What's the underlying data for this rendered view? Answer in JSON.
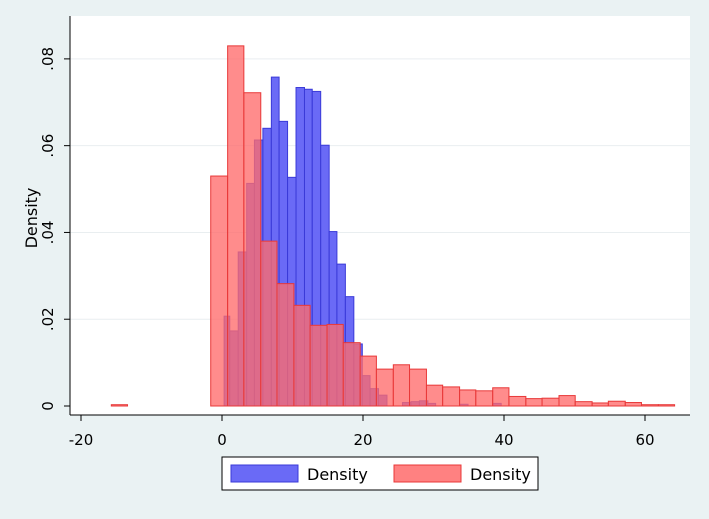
{
  "chart_data": {
    "type": "bar",
    "title": "",
    "xlabel": "",
    "ylabel": "Density",
    "xlim": [
      -22,
      67
    ],
    "ylim": [
      0,
      0.0885
    ],
    "x_ticks": [
      -20,
      0,
      20,
      40,
      60
    ],
    "x_tick_labels": [
      "-20",
      "0",
      "20",
      "40",
      "60"
    ],
    "y_ticks": [
      0,
      0.02,
      0.04,
      0.06,
      0.08
    ],
    "y_tick_labels": [
      "0",
      ".02",
      ".04",
      ".06",
      ".08"
    ],
    "grid": true,
    "legend_position": "bottom",
    "series": [
      {
        "name": "Density",
        "color": "#6262f5",
        "edge_color": "#3a3ad8",
        "bins": [
          {
            "x0": 0.3,
            "x1": 1.1,
            "value": 0.0207
          },
          {
            "x0": 1.1,
            "x1": 2.3,
            "value": 0.0173
          },
          {
            "x0": 2.3,
            "x1": 3.5,
            "value": 0.0355
          },
          {
            "x0": 3.5,
            "x1": 4.6,
            "value": 0.0513
          },
          {
            "x0": 4.6,
            "x1": 5.8,
            "value": 0.0613
          },
          {
            "x0": 5.8,
            "x1": 7.0,
            "value": 0.064
          },
          {
            "x0": 7.0,
            "x1": 8.1,
            "value": 0.0758
          },
          {
            "x0": 8.1,
            "x1": 9.3,
            "value": 0.0656
          },
          {
            "x0": 9.3,
            "x1": 10.5,
            "value": 0.0527
          },
          {
            "x0": 10.5,
            "x1": 11.7,
            "value": 0.0734
          },
          {
            "x0": 11.7,
            "x1": 12.8,
            "value": 0.073
          },
          {
            "x0": 12.8,
            "x1": 14.0,
            "value": 0.0725
          },
          {
            "x0": 14.0,
            "x1": 15.2,
            "value": 0.0601
          },
          {
            "x0": 15.2,
            "x1": 16.3,
            "value": 0.0402
          },
          {
            "x0": 16.3,
            "x1": 17.5,
            "value": 0.0327
          },
          {
            "x0": 17.5,
            "x1": 18.7,
            "value": 0.0252
          },
          {
            "x0": 18.7,
            "x1": 19.9,
            "value": 0.0143
          },
          {
            "x0": 19.9,
            "x1": 21.0,
            "value": 0.007
          },
          {
            "x0": 21.0,
            "x1": 22.2,
            "value": 0.004
          },
          {
            "x0": 22.2,
            "x1": 23.4,
            "value": 0.0025
          },
          {
            "x0": 25.6,
            "x1": 26.8,
            "value": 0.0008
          },
          {
            "x0": 26.8,
            "x1": 28.0,
            "value": 0.001
          },
          {
            "x0": 28.0,
            "x1": 29.2,
            "value": 0.0012
          },
          {
            "x0": 29.2,
            "x1": 30.3,
            "value": 0.0006
          },
          {
            "x0": 33.7,
            "x1": 34.9,
            "value": 0.0004
          },
          {
            "x0": 38.4,
            "x1": 39.6,
            "value": 0.0006
          }
        ]
      },
      {
        "name": "Density",
        "color": "#ff6b6b",
        "edge_color": "#e83838",
        "bins": [
          {
            "x0": -15.7,
            "x1": -13.4,
            "value": 0.0003
          },
          {
            "x0": -1.6,
            "x1": 0.8,
            "value": 0.053
          },
          {
            "x0": 0.8,
            "x1": 3.1,
            "value": 0.083
          },
          {
            "x0": 3.1,
            "x1": 5.5,
            "value": 0.0722
          },
          {
            "x0": 5.5,
            "x1": 7.8,
            "value": 0.038
          },
          {
            "x0": 7.8,
            "x1": 10.2,
            "value": 0.0282
          },
          {
            "x0": 10.2,
            "x1": 12.5,
            "value": 0.0232
          },
          {
            "x0": 12.5,
            "x1": 14.9,
            "value": 0.0186
          },
          {
            "x0": 14.9,
            "x1": 17.2,
            "value": 0.0188
          },
          {
            "x0": 17.2,
            "x1": 19.6,
            "value": 0.0146
          },
          {
            "x0": 19.6,
            "x1": 21.9,
            "value": 0.0115
          },
          {
            "x0": 21.9,
            "x1": 24.3,
            "value": 0.0085
          },
          {
            "x0": 24.3,
            "x1": 26.6,
            "value": 0.0095
          },
          {
            "x0": 26.6,
            "x1": 29.0,
            "value": 0.0085
          },
          {
            "x0": 29.0,
            "x1": 31.3,
            "value": 0.0048
          },
          {
            "x0": 31.3,
            "x1": 33.7,
            "value": 0.0044
          },
          {
            "x0": 33.7,
            "x1": 36.0,
            "value": 0.0037
          },
          {
            "x0": 36.0,
            "x1": 38.4,
            "value": 0.0035
          },
          {
            "x0": 38.4,
            "x1": 40.7,
            "value": 0.0042
          },
          {
            "x0": 40.7,
            "x1": 43.1,
            "value": 0.0022
          },
          {
            "x0": 43.1,
            "x1": 45.4,
            "value": 0.0017
          },
          {
            "x0": 45.4,
            "x1": 47.8,
            "value": 0.0018
          },
          {
            "x0": 47.8,
            "x1": 50.1,
            "value": 0.0024
          },
          {
            "x0": 50.1,
            "x1": 52.5,
            "value": 0.001
          },
          {
            "x0": 52.5,
            "x1": 54.8,
            "value": 0.0007
          },
          {
            "x0": 54.8,
            "x1": 57.2,
            "value": 0.0011
          },
          {
            "x0": 57.2,
            "x1": 59.5,
            "value": 0.0008
          },
          {
            "x0": 59.5,
            "x1": 61.9,
            "value": 0.0003
          },
          {
            "x0": 61.9,
            "x1": 64.2,
            "value": 0.0003
          }
        ]
      }
    ]
  },
  "colors": {
    "page_background": "#eaf2f3",
    "plot_background": "#ffffff",
    "grid": "#e9eef0"
  }
}
